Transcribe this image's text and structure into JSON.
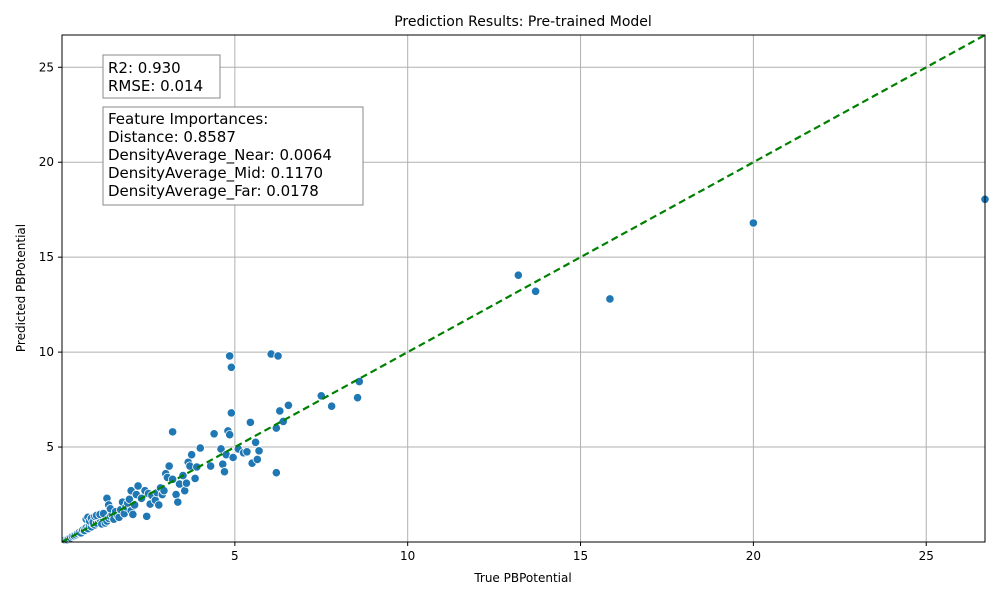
{
  "chart_data": {
    "type": "scatter",
    "title": "Prediction Results: Pre-trained Model",
    "xlabel": "True PBPotential",
    "ylabel": "Predicted PBPotential",
    "xlim": [
      0,
      26.7
    ],
    "ylim": [
      0,
      26.7
    ],
    "xticks": [
      5,
      10,
      15,
      20,
      25
    ],
    "yticks": [
      5,
      10,
      15,
      20,
      25
    ],
    "grid": true,
    "colors": {
      "points": "#1f77b4",
      "point_edge": "#ffffff",
      "reference_line": "#008000",
      "grid": "#b0b0b0"
    },
    "reference_line": {
      "style": "dashed",
      "from": [
        0,
        0
      ],
      "to": [
        26.7,
        26.7
      ]
    },
    "stats_box": {
      "lines": [
        "R2: 0.930",
        "RMSE: 0.014"
      ]
    },
    "importance_box": {
      "lines": [
        "Feature Importances:",
        "Distance: 0.8587",
        "DensityAverage_Near: 0.0064",
        "DensityAverage_Mid: 0.1170",
        "DensityAverage_Far: 0.0178"
      ]
    },
    "series": [
      {
        "points": [
          [
            0.1,
            0.1
          ],
          [
            0.15,
            0.12
          ],
          [
            0.2,
            0.18
          ],
          [
            0.25,
            0.22
          ],
          [
            0.3,
            0.3
          ],
          [
            0.35,
            0.33
          ],
          [
            0.4,
            0.38
          ],
          [
            0.45,
            0.44
          ],
          [
            0.5,
            0.5
          ],
          [
            0.55,
            0.48
          ],
          [
            0.6,
            0.62
          ],
          [
            0.65,
            0.6
          ],
          [
            0.7,
            0.75
          ],
          [
            0.75,
            0.7
          ],
          [
            0.8,
            0.85
          ],
          [
            0.85,
            0.8
          ],
          [
            0.9,
            0.95
          ],
          [
            0.95,
            0.9
          ],
          [
            0.7,
            1.2
          ],
          [
            0.75,
            1.3
          ],
          [
            0.8,
            1.1
          ],
          [
            0.85,
            1.25
          ],
          [
            0.9,
            1.05
          ],
          [
            1.0,
            1.0
          ],
          [
            1.05,
            1.15
          ],
          [
            1.1,
            1.2
          ],
          [
            1.15,
            0.95
          ],
          [
            1.2,
            1.3
          ],
          [
            0.95,
            1.35
          ],
          [
            1.0,
            1.4
          ],
          [
            1.1,
            1.45
          ],
          [
            1.2,
            1.5
          ],
          [
            1.25,
            1.0
          ],
          [
            1.3,
            1.1
          ],
          [
            1.35,
            1.25
          ],
          [
            1.4,
            1.35
          ],
          [
            1.45,
            1.45
          ],
          [
            1.5,
            1.2
          ],
          [
            1.3,
            2.3
          ],
          [
            1.35,
            1.95
          ],
          [
            1.4,
            1.75
          ],
          [
            1.55,
            1.6
          ],
          [
            1.6,
            1.4
          ],
          [
            1.65,
            1.3
          ],
          [
            1.7,
            1.7
          ],
          [
            1.75,
            2.1
          ],
          [
            1.8,
            1.5
          ],
          [
            1.85,
            1.85
          ],
          [
            1.9,
            2.05
          ],
          [
            1.95,
            2.25
          ],
          [
            2.0,
            1.65
          ],
          [
            2.0,
            2.7
          ],
          [
            2.05,
            1.45
          ],
          [
            2.1,
            1.95
          ],
          [
            2.15,
            2.5
          ],
          [
            2.2,
            2.95
          ],
          [
            2.3,
            2.3
          ],
          [
            2.4,
            2.7
          ],
          [
            2.45,
            1.35
          ],
          [
            2.5,
            2.55
          ],
          [
            2.55,
            2.0
          ],
          [
            2.6,
            2.45
          ],
          [
            2.7,
            2.2
          ],
          [
            2.75,
            2.6
          ],
          [
            2.8,
            1.95
          ],
          [
            2.85,
            2.85
          ],
          [
            2.9,
            2.5
          ],
          [
            2.95,
            2.7
          ],
          [
            3.0,
            3.6
          ],
          [
            3.05,
            3.4
          ],
          [
            3.1,
            4.0
          ],
          [
            3.2,
            3.3
          ],
          [
            3.2,
            5.8
          ],
          [
            3.3,
            2.5
          ],
          [
            3.35,
            2.1
          ],
          [
            3.4,
            3.05
          ],
          [
            3.5,
            3.5
          ],
          [
            3.55,
            2.7
          ],
          [
            3.6,
            3.1
          ],
          [
            3.65,
            4.2
          ],
          [
            3.7,
            4.0
          ],
          [
            3.75,
            4.6
          ],
          [
            3.85,
            3.35
          ],
          [
            3.9,
            3.95
          ],
          [
            4.0,
            4.95
          ],
          [
            4.3,
            4.0
          ],
          [
            4.4,
            5.7
          ],
          [
            4.6,
            4.9
          ],
          [
            4.65,
            4.1
          ],
          [
            4.7,
            3.7
          ],
          [
            4.75,
            4.6
          ],
          [
            4.8,
            5.85
          ],
          [
            4.85,
            5.65
          ],
          [
            4.85,
            9.8
          ],
          [
            4.9,
            9.2
          ],
          [
            4.9,
            6.8
          ],
          [
            4.95,
            4.45
          ],
          [
            5.1,
            4.9
          ],
          [
            5.25,
            4.7
          ],
          [
            5.35,
            4.75
          ],
          [
            5.45,
            6.3
          ],
          [
            5.5,
            4.15
          ],
          [
            5.6,
            5.25
          ],
          [
            5.65,
            4.35
          ],
          [
            5.7,
            4.8
          ],
          [
            6.05,
            9.9
          ],
          [
            6.2,
            6.0
          ],
          [
            6.25,
            9.8
          ],
          [
            6.2,
            3.65
          ],
          [
            6.3,
            6.9
          ],
          [
            6.4,
            6.35
          ],
          [
            6.55,
            7.2
          ],
          [
            7.5,
            7.7
          ],
          [
            7.8,
            7.15
          ],
          [
            8.55,
            7.6
          ],
          [
            8.6,
            8.45
          ],
          [
            13.2,
            14.05
          ],
          [
            13.7,
            13.2
          ],
          [
            15.85,
            12.8
          ],
          [
            20.0,
            16.8
          ],
          [
            26.7,
            18.05
          ]
        ]
      }
    ]
  }
}
